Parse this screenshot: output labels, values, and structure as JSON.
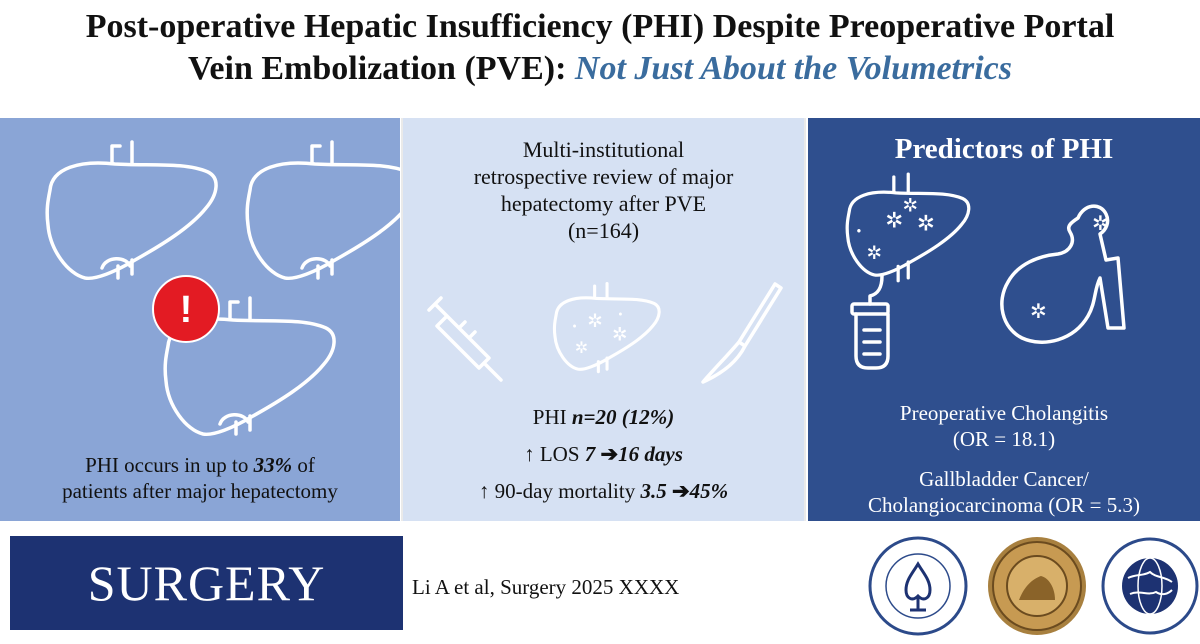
{
  "title": {
    "line1": "Post-operative Hepatic Insufficiency (PHI) Despite Preoperative Portal",
    "line2_plain": "Vein Embolization (PVE): ",
    "line2_accent": "Not Just About the Volumetrics"
  },
  "panel_left": {
    "alert_symbol": "!",
    "text_before": "PHI occurs in up to ",
    "text_emph": "33%",
    "text_after": " of",
    "text_line2": "patients after major hepatectomy",
    "icons": [
      "liver-icon",
      "liver-icon",
      "liver-icon",
      "alert-icon"
    ]
  },
  "panel_middle": {
    "study_line1": "Multi-institutional",
    "study_line2": "retrospective review of major",
    "study_line3": "hepatectomy after PVE",
    "study_line4": "(n=164)",
    "phi_label": "PHI ",
    "phi_value": "n=20 (12%)",
    "los_label": "↑ LOS ",
    "los_from": "7",
    "los_arrow": " ➔",
    "los_to": "16 days",
    "mort_label": "↑ 90-day mortality ",
    "mort_from": "3.5",
    "mort_arrow": " ➔",
    "mort_to": "45%",
    "icons": [
      "syringe-icon",
      "liver-icon",
      "scalpel-icon"
    ]
  },
  "panel_right": {
    "heading": "Predictors of PHI",
    "pred1_line1": "Preoperative Cholangitis",
    "pred1_line2": "(OR = 18.1)",
    "pred2_line1": "Gallbladder Cancer/",
    "pred2_line2": "Cholangiocarcinoma (OR = 5.3)",
    "icons": [
      "liver-icon",
      "drainage-bag-icon",
      "gallbladder-icon"
    ]
  },
  "footer": {
    "journal": "SURGERY",
    "citation": "Li A et al, Surgery 2025 XXXX",
    "logos": [
      "society-of-university-surgeons-seal",
      "central-surgical-association-seal",
      "american-association-of-endocrine-surgeons-seal"
    ]
  },
  "colors": {
    "accent": "#3a6c9e",
    "panel_left": "#8aa5d6",
    "panel_middle": "#d6e1f3",
    "panel_right": "#2f4f8e",
    "banner": "#1d3272",
    "alert": "#e31b23"
  }
}
